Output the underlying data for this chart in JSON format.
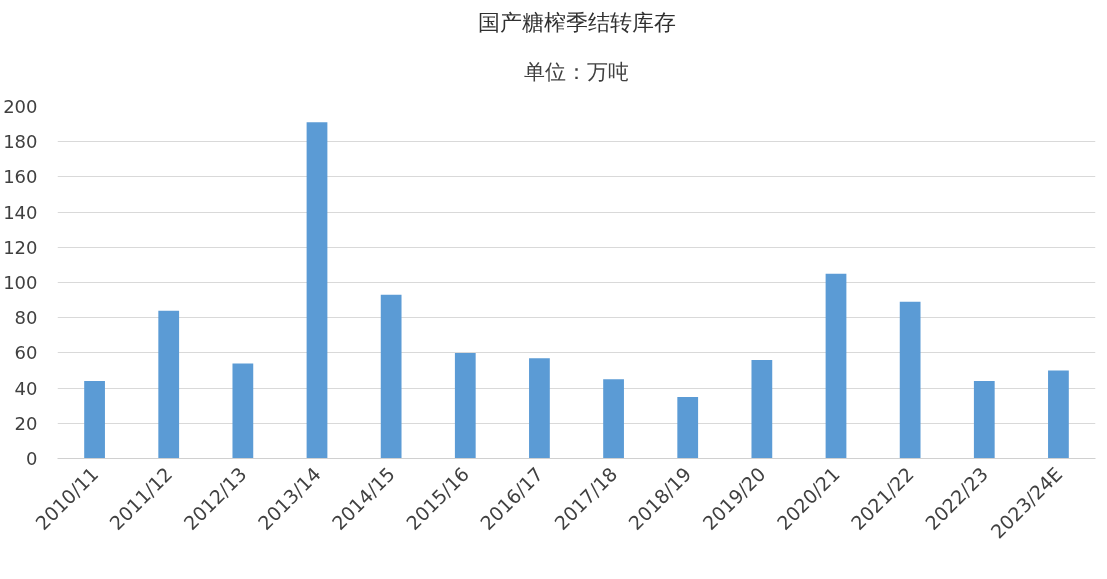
{
  "chart_data": {
    "type": "bar",
    "title": "国产糖榨季结转库存",
    "subtitle": "单位：万吨",
    "categories": [
      "2010/11",
      "2011/12",
      "2012/13",
      "2013/14",
      "2014/15",
      "2015/16",
      "2016/17",
      "2017/18",
      "2018/19",
      "2019/20",
      "2020/21",
      "2021/22",
      "2022/23",
      "2023/24E"
    ],
    "values": [
      44,
      84,
      54,
      191,
      93,
      60,
      57,
      45,
      35,
      56,
      105,
      89,
      44,
      50
    ],
    "color": "#5b9bd5",
    "ylim": [
      0,
      200
    ],
    "yticks": [
      0,
      20,
      40,
      60,
      80,
      100,
      120,
      140,
      160,
      180,
      200
    ],
    "grid": "y"
  }
}
